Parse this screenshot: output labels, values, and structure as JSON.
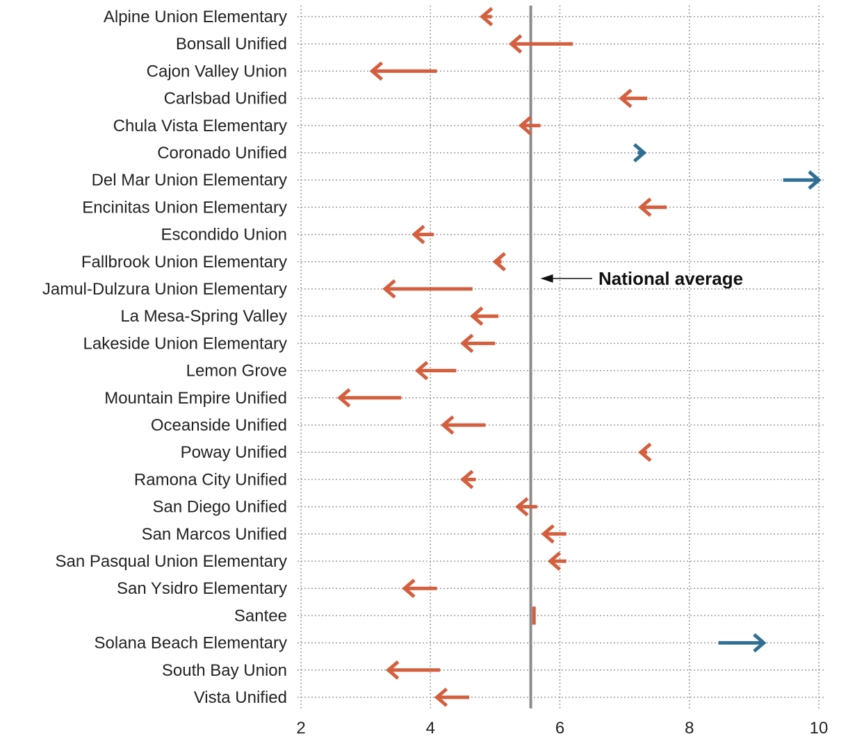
{
  "chart_data": {
    "type": "arrow",
    "title": "",
    "xlabel": "",
    "ylabel": "",
    "xlim": [
      2,
      10
    ],
    "xticks": [
      2,
      4,
      6,
      8,
      10
    ],
    "grid": true,
    "colors": {
      "decrease": "#d45f3e",
      "increase": "#2f6f93",
      "average": "#8c8c8c",
      "grid": "#9a9a9a",
      "text": "#222222"
    },
    "reference_line": {
      "label": "National average",
      "value": 5.55
    },
    "categories": [
      "Alpine Union Elementary",
      "Bonsall Unified",
      "Cajon Valley Union",
      "Carlsbad Unified",
      "Chula Vista Elementary",
      "Coronado Unified",
      "Del Mar Union Elementary",
      "Encinitas Union Elementary",
      "Escondido Union",
      "Fallbrook Union Elementary",
      "Jamul-Dulzura Union Elementary",
      "La Mesa-Spring Valley",
      "Lakeside Union Elementary",
      "Lemon Grove",
      "Mountain Empire Unified",
      "Oceanside Unified",
      "Poway Unified",
      "Ramona City Unified",
      "San Diego Unified",
      "San Marcos Unified",
      "San Pasqual Union Elementary",
      "San Ysidro Elementary",
      "Santee",
      "Solana Beach Elementary",
      "South Bay Union",
      "Vista Unified"
    ],
    "series": [
      {
        "name": "start",
        "values": [
          4.95,
          6.2,
          4.1,
          7.35,
          5.7,
          7.2,
          9.45,
          7.65,
          4.05,
          5.1,
          4.65,
          5.05,
          5.0,
          4.4,
          3.55,
          4.85,
          7.35,
          4.7,
          5.65,
          6.1,
          6.1,
          4.1,
          5.6,
          8.45,
          4.15,
          4.6
        ]
      },
      {
        "name": "end",
        "values": [
          4.8,
          5.25,
          3.1,
          6.95,
          5.4,
          7.3,
          10.0,
          7.25,
          3.75,
          5.0,
          3.3,
          4.65,
          4.5,
          3.8,
          2.6,
          4.2,
          7.25,
          4.5,
          5.35,
          5.75,
          5.85,
          3.6,
          5.6,
          9.15,
          3.35,
          4.1
        ]
      }
    ]
  }
}
